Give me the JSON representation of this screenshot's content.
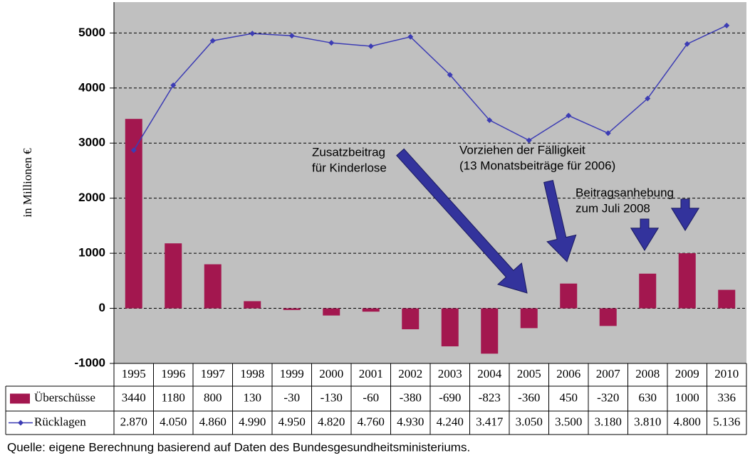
{
  "chart_data": {
    "type": "bar",
    "y_label": "in Millionen €",
    "categories": [
      "1995",
      "1996",
      "1997",
      "1998",
      "1999",
      "2000",
      "2001",
      "2002",
      "2003",
      "2004",
      "2005",
      "2006",
      "2007",
      "2008",
      "2009",
      "2010"
    ],
    "series": [
      {
        "name": "Überschüsse",
        "type": "bar",
        "color": "#a3174f",
        "values": [
          3440,
          1180,
          800,
          130,
          -30,
          -130,
          -60,
          -380,
          -690,
          -823,
          -360,
          450,
          -320,
          630,
          1000,
          336
        ]
      },
      {
        "name": "Rücklagen",
        "type": "line",
        "color": "#3c3cb4",
        "values": [
          2870,
          4050,
          4860,
          4990,
          4950,
          4820,
          4760,
          4930,
          4240,
          3417,
          3050,
          3500,
          3180,
          3810,
          4800,
          5136
        ],
        "value_labels": [
          "2.870",
          "4.050",
          "4.860",
          "4.990",
          "4.950",
          "4.820",
          "4.760",
          "4.930",
          "4.240",
          "3.417",
          "3.050",
          "3.500",
          "3.180",
          "3.810",
          "4.800",
          "5.136"
        ]
      }
    ],
    "ylim": [
      -1000,
      5560
    ],
    "yticks": [
      -1000,
      0,
      1000,
      2000,
      3000,
      4000,
      5000
    ],
    "grid": true,
    "annotations": [
      [
        "Zusatzbeitrag",
        "für Kinderlose"
      ],
      [
        "Vorziehen der Fälligkeit",
        "(13 Monatsbeiträge für 2006)"
      ],
      [
        "Beitragsanhebung",
        "zum Juli 2008"
      ]
    ],
    "source": "Quelle: eigene Berechnung basierend auf Daten des Bundesgesundheitsministeriums."
  }
}
